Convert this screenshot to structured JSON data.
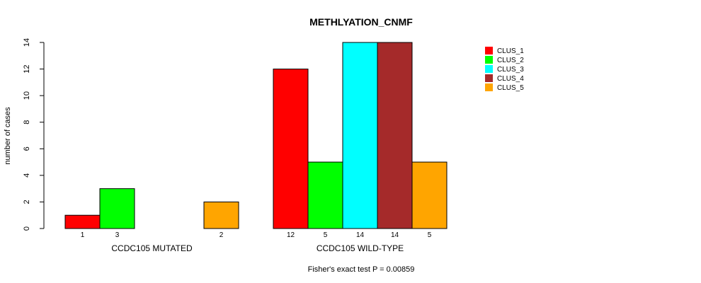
{
  "chart_data": {
    "type": "bar",
    "title": "METHLYATION_CNMF",
    "ylabel": "number of cases",
    "ylim": [
      0,
      14
    ],
    "yticks": [
      0,
      2,
      4,
      6,
      8,
      10,
      12,
      14
    ],
    "groups": [
      {
        "label": "CCDC105 MUTATED",
        "values": [
          1,
          3,
          0,
          0,
          2
        ],
        "counts": [
          "1",
          "3",
          "",
          "",
          "2"
        ]
      },
      {
        "label": "CCDC105 WILD-TYPE",
        "values": [
          12,
          5,
          14,
          14,
          5
        ],
        "counts": [
          "12",
          "5",
          "14",
          "14",
          "5"
        ]
      }
    ],
    "series": [
      {
        "name": "CLUS_1",
        "color": "#ff0000"
      },
      {
        "name": "CLUS_2",
        "color": "#00ff00"
      },
      {
        "name": "CLUS_3",
        "color": "#00ffff"
      },
      {
        "name": "CLUS_4",
        "color": "#a52a2a"
      },
      {
        "name": "CLUS_5",
        "color": "#ffa500"
      }
    ],
    "legend_position": "top-right",
    "footnote": "Fisher's exact test P = 0.00859"
  }
}
